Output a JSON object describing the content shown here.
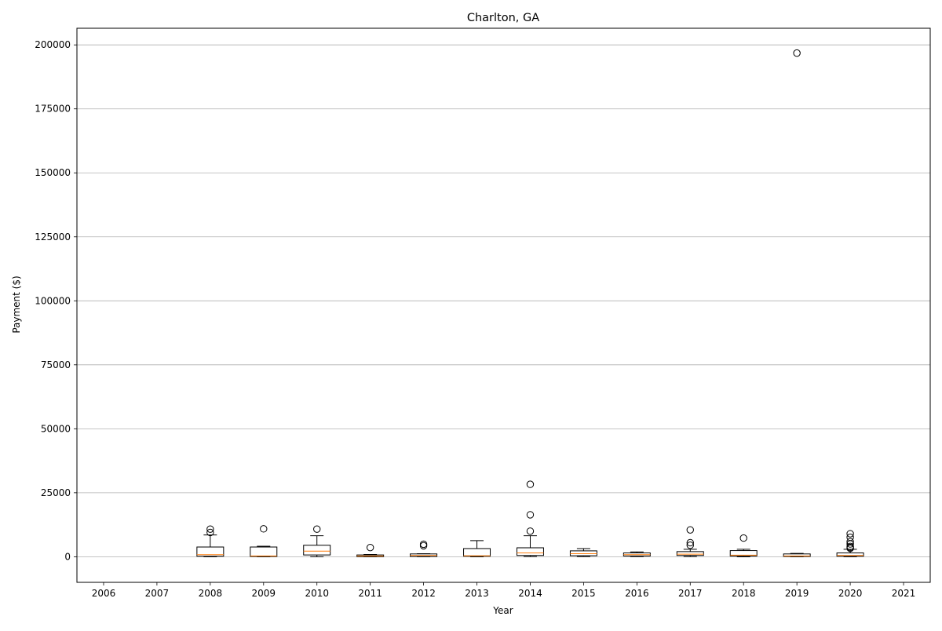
{
  "chart_data": {
    "type": "box",
    "title": "Charlton, GA",
    "xlabel": "Year",
    "ylabel": "Payment ($)",
    "categories": [
      "2006",
      "2007",
      "2008",
      "2009",
      "2010",
      "2011",
      "2012",
      "2013",
      "2014",
      "2015",
      "2016",
      "2017",
      "2018",
      "2019",
      "2020",
      "2021"
    ],
    "ylim": [
      -10000,
      206500
    ],
    "yticks": [
      0,
      25000,
      50000,
      75000,
      100000,
      125000,
      150000,
      175000,
      200000
    ],
    "grid": "horizontal",
    "colors": {
      "box": "#000000",
      "median": "#ff7f0e",
      "grid": "#b0b0b0",
      "axis": "#000000"
    },
    "boxes": [
      {
        "year": "2006"
      },
      {
        "year": "2007"
      },
      {
        "year": "2008",
        "whisker_low": 0,
        "q1": 200,
        "median": 800,
        "q3": 3800,
        "whisker_high": 8500,
        "outliers": [
          9500,
          10800
        ]
      },
      {
        "year": "2009",
        "whisker_low": 0,
        "q1": 100,
        "median": 300,
        "q3": 3800,
        "whisker_high": 4100,
        "outliers": [
          10900
        ]
      },
      {
        "year": "2010",
        "whisker_low": 0,
        "q1": 700,
        "median": 2200,
        "q3": 4500,
        "whisker_high": 8200,
        "outliers": [
          10800
        ]
      },
      {
        "year": "2011",
        "whisker_low": 0,
        "q1": 50,
        "median": 300,
        "q3": 700,
        "whisker_high": 900,
        "outliers": [
          3600
        ]
      },
      {
        "year": "2012",
        "whisker_low": 0,
        "q1": 100,
        "median": 500,
        "q3": 1100,
        "whisker_high": 1200,
        "outliers": [
          4300,
          4900
        ]
      },
      {
        "year": "2013",
        "whisker_low": 0,
        "q1": 200,
        "median": 400,
        "q3": 3200,
        "whisker_high": 6300,
        "outliers": []
      },
      {
        "year": "2014",
        "whisker_low": 100,
        "q1": 500,
        "median": 1500,
        "q3": 3500,
        "whisker_high": 8200,
        "outliers": [
          10000,
          16400,
          28300
        ]
      },
      {
        "year": "2015",
        "whisker_low": 100,
        "q1": 400,
        "median": 1200,
        "q3": 2300,
        "whisker_high": 3200,
        "outliers": []
      },
      {
        "year": "2016",
        "whisker_low": 100,
        "q1": 300,
        "median": 800,
        "q3": 1500,
        "whisker_high": 1900,
        "outliers": []
      },
      {
        "year": "2017",
        "whisker_low": 100,
        "q1": 500,
        "median": 1000,
        "q3": 2000,
        "whisker_high": 2900,
        "outliers": [
          4500,
          5500,
          10500
        ]
      },
      {
        "year": "2018",
        "whisker_low": 0,
        "q1": 300,
        "median": 600,
        "q3": 2400,
        "whisker_high": 2900,
        "outliers": [
          7300
        ]
      },
      {
        "year": "2019",
        "whisker_low": 0,
        "q1": 100,
        "median": 300,
        "q3": 1100,
        "whisker_high": 1300,
        "outliers": [
          196800
        ]
      },
      {
        "year": "2020",
        "whisker_low": 0,
        "q1": 200,
        "median": 500,
        "q3": 1500,
        "whisker_high": 2900,
        "outliers": [
          3300,
          3600,
          4000,
          5000,
          5900,
          7600,
          9000
        ]
      },
      {
        "year": "2021"
      }
    ]
  }
}
